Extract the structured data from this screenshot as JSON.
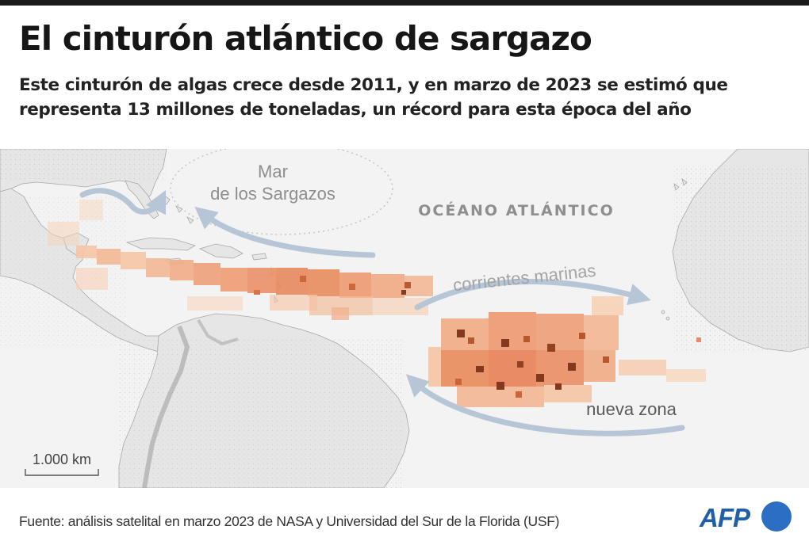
{
  "header": {
    "title": "El cinturón atlántico de sargazo",
    "subtitle": "Este cinturón de algas crece desde 2011, y en marzo de 2023 se estimó que representa 13 millones de toneladas, un récord para esta época del año"
  },
  "map": {
    "labels": {
      "sea_line1": "Mar",
      "sea_line2": "de los Sargazos",
      "ocean": "OCÉANO ATLÁNTICO",
      "currents": "corrientes marinas",
      "new_zone": "nueva zona"
    },
    "scale": {
      "label": "1.000 km"
    },
    "colors": {
      "ocean": "#f3f3f3",
      "land": "#e6e6e6",
      "land_edge": "#a8a8a8",
      "relief": "#8c8c8c",
      "arrow": "#b7c6d6",
      "sargassum_light": "#f6c6a6",
      "sargassum_mid": "#e88f5a",
      "sargassum_dark": "#7a2a0c"
    }
  },
  "footer": {
    "source": "Fuente: análisis satelital en marzo 2023 de NASA y Universidad del Sur de la Florida (USF)",
    "logo_text": "AFP"
  }
}
